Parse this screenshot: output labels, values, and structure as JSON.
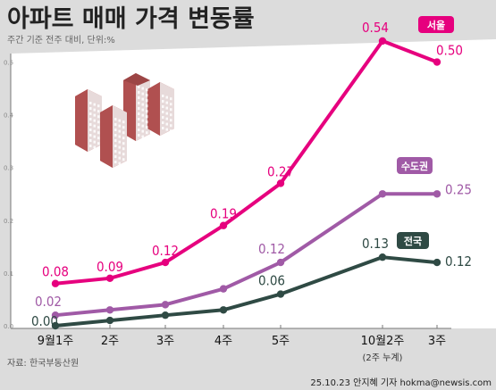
{
  "title": "아파트 매매 가격 변동률",
  "subtitle": "주간 기준 전주 대비, 단위:%",
  "source": "자료: 한국부동산원",
  "credit": "25.10.23 안지혜 기자 hokma@newsis.com",
  "colors": {
    "background": "#dcdcdc",
    "plot_area": "#ffffff",
    "seoul": "#e6007e",
    "capital": "#a05aa6",
    "national": "#2f4a44",
    "axis": "#777777"
  },
  "chart_data": {
    "type": "line",
    "categories": [
      "9월1주",
      "2주",
      "3주",
      "4주",
      "5주",
      "10월2주",
      "3주"
    ],
    "category_note": "(2주 누계)",
    "ytick_labels": [
      "0.0",
      "0.1",
      "0.2",
      "0.3",
      "0.4",
      "0.5"
    ],
    "ylim": [
      0,
      0.55
    ],
    "grid": false,
    "series": [
      {
        "name": "서울",
        "color_key": "seoul",
        "values": [
          0.08,
          0.09,
          0.12,
          0.19,
          0.27,
          0.54,
          0.5
        ],
        "labels": [
          "0.08",
          "0.09",
          "0.12",
          "0.19",
          "0.27",
          "0.54",
          "0.50"
        ]
      },
      {
        "name": "수도권",
        "color_key": "capital",
        "values": [
          0.02,
          0.03,
          0.04,
          0.07,
          0.12,
          0.25,
          0.25
        ],
        "labels": [
          "0.02",
          "",
          "",
          "",
          "0.12",
          "",
          "0.25"
        ]
      },
      {
        "name": "전국",
        "color_key": "national",
        "values": [
          0.0,
          0.01,
          0.02,
          0.03,
          0.06,
          0.13,
          0.12
        ],
        "labels": [
          "0.00",
          "",
          "",
          "",
          "0.06",
          "0.13",
          "0.12"
        ]
      }
    ]
  }
}
